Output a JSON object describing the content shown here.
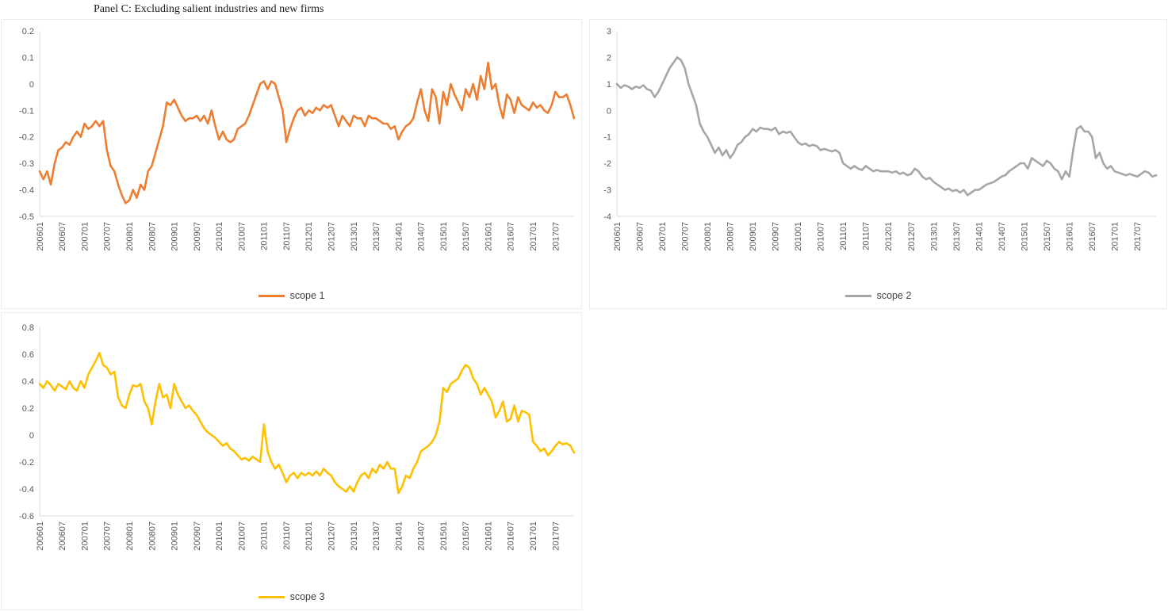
{
  "title": "Panel C: Excluding salient industries and new firms",
  "chart_data": [
    {
      "type": "line",
      "name": "scope-1",
      "legend": "scope 1",
      "color": "#ED7D31",
      "grid": false,
      "legend_position": "bottom",
      "ylim": [
        -0.5,
        0.2
      ],
      "yticks": [
        0.2,
        0.1,
        0,
        -0.1,
        -0.2,
        -0.3,
        -0.4,
        -0.5
      ],
      "x_start": "2006-01",
      "x_freq": "monthly",
      "x_tick_every": 6,
      "x_tick_labels": [
        "200601",
        "200607",
        "200701",
        "200707",
        "200801",
        "200807",
        "200901",
        "200907",
        "201001",
        "201007",
        "201101",
        "201107",
        "201201",
        "201207",
        "201301",
        "201307",
        "201401",
        "201407",
        "201501",
        "201507",
        "201601",
        "201607",
        "201701",
        "201707"
      ],
      "values": [
        -0.33,
        -0.36,
        -0.33,
        -0.38,
        -0.3,
        -0.25,
        -0.24,
        -0.22,
        -0.23,
        -0.2,
        -0.18,
        -0.2,
        -0.15,
        -0.17,
        -0.16,
        -0.14,
        -0.16,
        -0.14,
        -0.25,
        -0.31,
        -0.33,
        -0.38,
        -0.42,
        -0.45,
        -0.44,
        -0.4,
        -0.43,
        -0.38,
        -0.4,
        -0.33,
        -0.31,
        -0.26,
        -0.21,
        -0.16,
        -0.07,
        -0.08,
        -0.06,
        -0.09,
        -0.12,
        -0.14,
        -0.13,
        -0.13,
        -0.12,
        -0.14,
        -0.12,
        -0.15,
        -0.1,
        -0.16,
        -0.21,
        -0.18,
        -0.21,
        -0.22,
        -0.21,
        -0.17,
        -0.16,
        -0.15,
        -0.12,
        -0.08,
        -0.04,
        0.0,
        0.01,
        -0.02,
        0.01,
        0.0,
        -0.05,
        -0.1,
        -0.22,
        -0.17,
        -0.13,
        -0.1,
        -0.09,
        -0.12,
        -0.1,
        -0.11,
        -0.09,
        -0.1,
        -0.08,
        -0.09,
        -0.08,
        -0.12,
        -0.16,
        -0.12,
        -0.14,
        -0.16,
        -0.12,
        -0.13,
        -0.13,
        -0.16,
        -0.12,
        -0.13,
        -0.13,
        -0.14,
        -0.15,
        -0.15,
        -0.17,
        -0.16,
        -0.21,
        -0.18,
        -0.16,
        -0.15,
        -0.13,
        -0.07,
        -0.02,
        -0.1,
        -0.14,
        -0.02,
        -0.05,
        -0.15,
        -0.03,
        -0.08,
        0.0,
        -0.04,
        -0.07,
        -0.1,
        -0.02,
        -0.05,
        0.0,
        -0.06,
        0.03,
        -0.02,
        0.08,
        -0.02,
        0.0,
        -0.08,
        -0.13,
        -0.04,
        -0.06,
        -0.11,
        -0.05,
        -0.08,
        -0.09,
        -0.1,
        -0.07,
        -0.09,
        -0.08,
        -0.1,
        -0.11,
        -0.08,
        -0.03,
        -0.05,
        -0.05,
        -0.04,
        -0.08,
        -0.13
      ]
    },
    {
      "type": "line",
      "name": "scope-2",
      "legend": "scope 2",
      "color": "#A6A6A6",
      "grid": false,
      "legend_position": "bottom",
      "ylim": [
        -4,
        3
      ],
      "yticks": [
        3,
        2,
        1,
        0,
        -1,
        -2,
        -3,
        -4
      ],
      "x_start": "2006-01",
      "x_freq": "monthly",
      "x_tick_every": 6,
      "x_tick_labels": [
        "200601",
        "200607",
        "200701",
        "200707",
        "200801",
        "200807",
        "200901",
        "200907",
        "201001",
        "201007",
        "201101",
        "201107",
        "201201",
        "201207",
        "201301",
        "201307",
        "201401",
        "201407",
        "201501",
        "201507",
        "201601",
        "201607",
        "201701",
        "201707"
      ],
      "values": [
        1.0,
        0.85,
        0.95,
        0.9,
        0.8,
        0.9,
        0.85,
        0.95,
        0.8,
        0.75,
        0.5,
        0.7,
        1.0,
        1.3,
        1.6,
        1.8,
        2.0,
        1.9,
        1.6,
        1.0,
        0.6,
        0.2,
        -0.5,
        -0.8,
        -1.0,
        -1.3,
        -1.6,
        -1.4,
        -1.7,
        -1.5,
        -1.8,
        -1.6,
        -1.3,
        -1.2,
        -1.0,
        -0.9,
        -0.7,
        -0.8,
        -0.65,
        -0.7,
        -0.7,
        -0.75,
        -0.65,
        -0.9,
        -0.8,
        -0.85,
        -0.8,
        -1.0,
        -1.2,
        -1.3,
        -1.25,
        -1.35,
        -1.3,
        -1.35,
        -1.5,
        -1.45,
        -1.5,
        -1.55,
        -1.5,
        -1.6,
        -2.0,
        -2.1,
        -2.2,
        -2.1,
        -2.2,
        -2.25,
        -2.1,
        -2.2,
        -2.3,
        -2.25,
        -2.3,
        -2.3,
        -2.3,
        -2.35,
        -2.3,
        -2.4,
        -2.35,
        -2.45,
        -2.4,
        -2.2,
        -2.3,
        -2.5,
        -2.6,
        -2.55,
        -2.7,
        -2.8,
        -2.9,
        -3.0,
        -2.95,
        -3.05,
        -3.0,
        -3.1,
        -3.0,
        -3.2,
        -3.1,
        -3.0,
        -3.0,
        -2.9,
        -2.8,
        -2.75,
        -2.7,
        -2.6,
        -2.5,
        -2.45,
        -2.3,
        -2.2,
        -2.1,
        -2.0,
        -2.0,
        -2.2,
        -1.8,
        -1.9,
        -2.0,
        -2.1,
        -1.9,
        -2.0,
        -2.2,
        -2.3,
        -2.6,
        -2.3,
        -2.5,
        -1.5,
        -0.7,
        -0.6,
        -0.8,
        -0.8,
        -1.0,
        -1.8,
        -1.6,
        -2.0,
        -2.2,
        -2.1,
        -2.3,
        -2.35,
        -2.4,
        -2.45,
        -2.4,
        -2.45,
        -2.5,
        -2.4,
        -2.3,
        -2.35,
        -2.5,
        -2.45
      ]
    },
    {
      "type": "line",
      "name": "scope-3",
      "legend": "scope 3",
      "color": "#FFC000",
      "grid": false,
      "legend_position": "bottom",
      "ylim": [
        -0.6,
        0.8
      ],
      "yticks": [
        0.8,
        0.6,
        0.4,
        0.2,
        0,
        -0.2,
        -0.4,
        -0.6
      ],
      "x_start": "2006-01",
      "x_freq": "monthly",
      "x_tick_every": 6,
      "x_tick_labels": [
        "200601",
        "200607",
        "200701",
        "200707",
        "200801",
        "200807",
        "200901",
        "200907",
        "201001",
        "201007",
        "201101",
        "201107",
        "201201",
        "201207",
        "201301",
        "201307",
        "201401",
        "201407",
        "201501",
        "201507",
        "201601",
        "201607",
        "201701",
        "201707"
      ],
      "values": [
        0.38,
        0.35,
        0.4,
        0.37,
        0.33,
        0.38,
        0.36,
        0.34,
        0.4,
        0.35,
        0.33,
        0.4,
        0.35,
        0.45,
        0.5,
        0.55,
        0.61,
        0.52,
        0.5,
        0.45,
        0.47,
        0.28,
        0.22,
        0.2,
        0.3,
        0.37,
        0.36,
        0.38,
        0.25,
        0.2,
        0.08,
        0.25,
        0.38,
        0.28,
        0.3,
        0.2,
        0.38,
        0.3,
        0.25,
        0.2,
        0.22,
        0.18,
        0.15,
        0.1,
        0.05,
        0.02,
        0.0,
        -0.02,
        -0.05,
        -0.08,
        -0.06,
        -0.1,
        -0.12,
        -0.15,
        -0.18,
        -0.17,
        -0.19,
        -0.16,
        -0.18,
        -0.2,
        0.08,
        -0.12,
        -0.2,
        -0.25,
        -0.22,
        -0.28,
        -0.35,
        -0.3,
        -0.28,
        -0.32,
        -0.28,
        -0.3,
        -0.28,
        -0.3,
        -0.27,
        -0.3,
        -0.25,
        -0.28,
        -0.3,
        -0.35,
        -0.38,
        -0.4,
        -0.42,
        -0.38,
        -0.42,
        -0.35,
        -0.3,
        -0.28,
        -0.32,
        -0.25,
        -0.28,
        -0.22,
        -0.25,
        -0.2,
        -0.25,
        -0.25,
        -0.43,
        -0.38,
        -0.3,
        -0.32,
        -0.25,
        -0.2,
        -0.12,
        -0.1,
        -0.08,
        -0.05,
        0.0,
        0.1,
        0.35,
        0.32,
        0.38,
        0.4,
        0.42,
        0.48,
        0.52,
        0.5,
        0.42,
        0.38,
        0.3,
        0.35,
        0.3,
        0.25,
        0.13,
        0.18,
        0.25,
        0.1,
        0.12,
        0.22,
        0.1,
        0.18,
        0.17,
        0.15,
        -0.05,
        -0.08,
        -0.12,
        -0.1,
        -0.15,
        -0.12,
        -0.08,
        -0.05,
        -0.07,
        -0.06,
        -0.08,
        -0.13
      ]
    }
  ]
}
